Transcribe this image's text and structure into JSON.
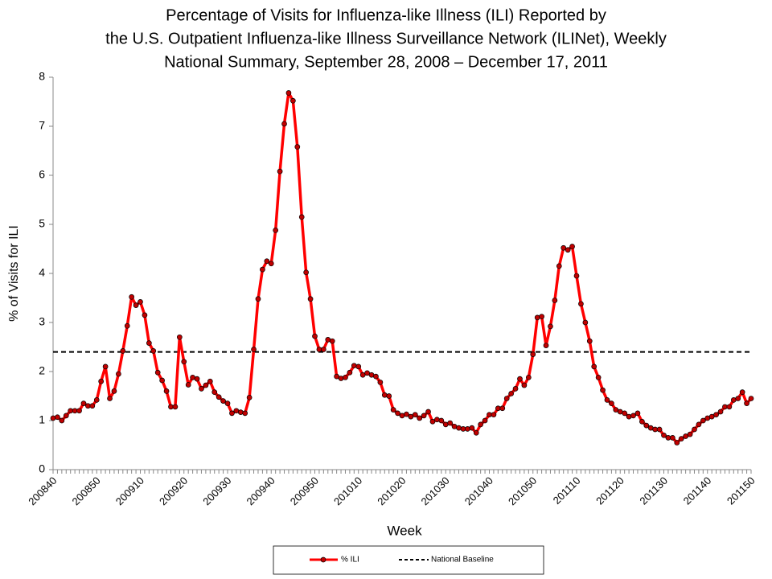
{
  "chart_data": {
    "type": "line",
    "title": [
      "Percentage of Visits for Influenza-like Illness (ILI) Reported by",
      "the U.S. Outpatient Influenza-like Illness Surveillance Network (ILINet), Weekly",
      "National Summary, September 28, 2008 – December 17, 2011"
    ],
    "x_label": "Week",
    "y_label": "% of Visits for ILI",
    "categories": [
      "200840",
      null,
      null,
      null,
      null,
      null,
      null,
      null,
      null,
      null,
      "200850",
      null,
      null,
      null,
      null,
      null,
      null,
      null,
      null,
      null,
      "200910",
      null,
      null,
      null,
      null,
      null,
      null,
      null,
      null,
      null,
      "200920",
      null,
      null,
      null,
      null,
      null,
      null,
      null,
      null,
      null,
      "200930",
      null,
      null,
      null,
      null,
      null,
      null,
      null,
      null,
      null,
      "200940",
      null,
      null,
      null,
      null,
      null,
      null,
      null,
      null,
      null,
      "200950",
      null,
      null,
      null,
      null,
      null,
      null,
      null,
      null,
      null,
      "201010",
      null,
      null,
      null,
      null,
      null,
      null,
      null,
      null,
      null,
      "201020",
      null,
      null,
      null,
      null,
      null,
      null,
      null,
      null,
      null,
      "201030",
      null,
      null,
      null,
      null,
      null,
      null,
      null,
      null,
      null,
      "201040",
      null,
      null,
      null,
      null,
      null,
      null,
      null,
      null,
      null,
      "201050",
      null,
      null,
      null,
      null,
      null,
      null,
      null,
      null,
      null,
      "201110",
      null,
      null,
      null,
      null,
      null,
      null,
      null,
      null,
      null,
      "201120",
      null,
      null,
      null,
      null,
      null,
      null,
      null,
      null,
      null,
      "201130",
      null,
      null,
      null,
      null,
      null,
      null,
      null,
      null,
      null,
      "201140",
      null,
      null,
      null,
      null,
      null,
      null,
      null,
      null,
      null,
      "201150"
    ],
    "series": [
      {
        "name": "% ILI",
        "color": "#ff0000",
        "marker_color": "#c00000",
        "values": [
          1.05,
          1.07,
          1.0,
          1.1,
          1.2,
          1.2,
          1.2,
          1.35,
          1.3,
          1.3,
          1.42,
          1.8,
          2.1,
          1.45,
          1.6,
          1.95,
          2.42,
          2.93,
          3.52,
          3.35,
          3.42,
          3.15,
          2.58,
          2.42,
          1.98,
          1.82,
          1.6,
          1.28,
          1.28,
          2.7,
          2.2,
          1.73,
          1.88,
          1.85,
          1.65,
          1.72,
          1.8,
          1.58,
          1.48,
          1.4,
          1.35,
          1.15,
          1.2,
          1.17,
          1.15,
          1.47,
          2.45,
          3.48,
          4.08,
          4.25,
          4.2,
          4.88,
          6.08,
          7.05,
          7.68,
          7.52,
          6.58,
          5.15,
          4.02,
          3.48,
          2.72,
          2.45,
          2.45,
          2.65,
          2.62,
          1.9,
          1.86,
          1.88,
          1.98,
          2.12,
          2.1,
          1.93,
          1.97,
          1.93,
          1.9,
          1.78,
          1.52,
          1.5,
          1.22,
          1.15,
          1.1,
          1.13,
          1.08,
          1.12,
          1.05,
          1.1,
          1.18,
          0.98,
          1.02,
          1.0,
          0.92,
          0.95,
          0.88,
          0.85,
          0.83,
          0.83,
          0.85,
          0.75,
          0.92,
          1.0,
          1.12,
          1.12,
          1.25,
          1.25,
          1.45,
          1.55,
          1.65,
          1.85,
          1.72,
          1.88,
          2.35,
          3.1,
          3.12,
          2.53,
          2.92,
          3.45,
          4.15,
          4.52,
          4.48,
          4.55,
          3.95,
          3.38,
          3.0,
          2.62,
          2.1,
          1.88,
          1.62,
          1.42,
          1.35,
          1.22,
          1.18,
          1.15,
          1.08,
          1.1,
          1.15,
          0.98,
          0.9,
          0.85,
          0.82,
          0.82,
          0.7,
          0.65,
          0.65,
          0.55,
          0.63,
          0.68,
          0.72,
          0.82,
          0.92,
          1.0,
          1.05,
          1.08,
          1.12,
          1.18,
          1.28,
          1.28,
          1.42,
          1.45,
          1.58,
          1.35,
          1.45
        ]
      }
    ],
    "baseline": {
      "name": "National Baseline",
      "value": 2.4,
      "color": "#000000"
    },
    "ylim": [
      0,
      8
    ],
    "yticks": [
      0,
      1,
      2,
      3,
      4,
      5,
      6,
      7,
      8
    ],
    "grid": false
  }
}
